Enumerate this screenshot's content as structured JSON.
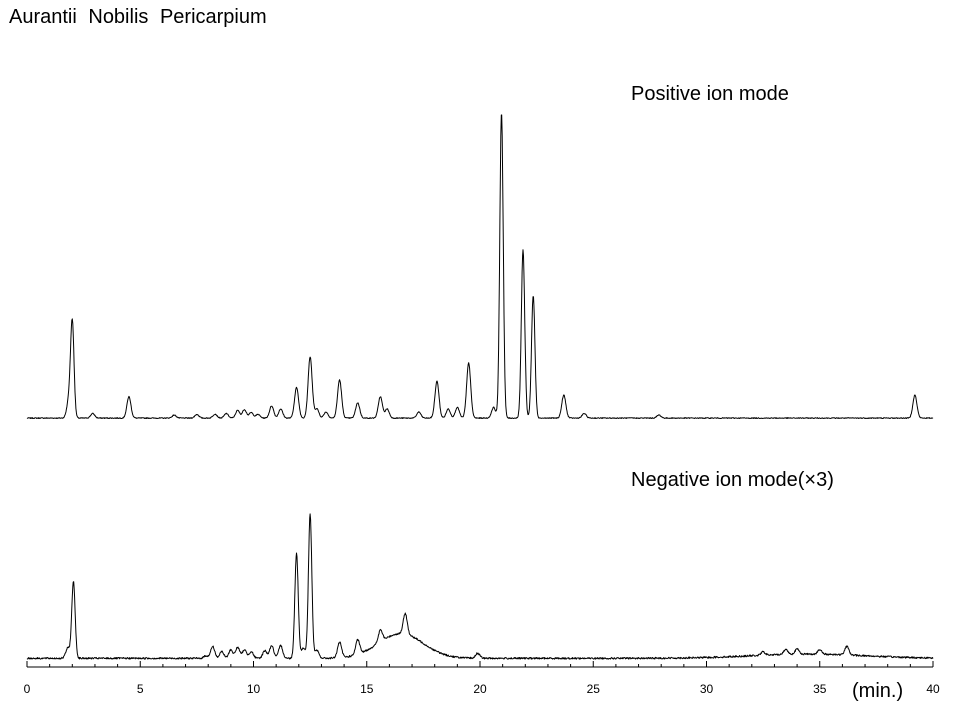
{
  "figure_title": "Aurantii  Nobilis  Pericarpium",
  "chart_data": {
    "type": "line",
    "title": "Aurantii  Nobilis  Pericarpium",
    "xlabel": "(min.)",
    "xlim": [
      0,
      40
    ],
    "x_ticks": [
      0,
      5,
      10,
      15,
      20,
      25,
      30,
      35,
      40
    ],
    "y_ticks_shown": false,
    "grid": false,
    "series": [
      {
        "name": "Positive ion mode",
        "baseline": 0.3,
        "noise": 0.15,
        "peaks": [
          [
            2.0,
            31
          ],
          [
            1.85,
            6
          ],
          [
            2.9,
            1.5
          ],
          [
            4.5,
            7
          ],
          [
            6.5,
            1
          ],
          [
            7.5,
            1.2
          ],
          [
            8.3,
            1.3
          ],
          [
            8.8,
            1.5
          ],
          [
            9.3,
            2.5
          ],
          [
            9.6,
            2.8
          ],
          [
            9.9,
            1.8
          ],
          [
            10.2,
            1.2
          ],
          [
            10.8,
            4
          ],
          [
            11.2,
            3
          ],
          [
            11.9,
            10
          ],
          [
            12.5,
            20
          ],
          [
            12.8,
            3
          ],
          [
            13.2,
            2
          ],
          [
            13.8,
            12.5
          ],
          [
            14.6,
            5
          ],
          [
            15.6,
            7
          ],
          [
            15.9,
            3
          ],
          [
            17.3,
            2
          ],
          [
            18.1,
            12
          ],
          [
            18.6,
            3
          ],
          [
            19.0,
            3.5
          ],
          [
            19.5,
            18
          ],
          [
            20.6,
            3.5
          ],
          [
            20.95,
            100
          ],
          [
            21.9,
            55
          ],
          [
            22.35,
            40
          ],
          [
            23.7,
            7.5
          ],
          [
            24.6,
            1.5
          ],
          [
            27.9,
            1
          ],
          [
            39.2,
            7.5
          ]
        ]
      },
      {
        "name": "Negative ion mode(×3)",
        "baseline": 1,
        "noise": 0.5,
        "peaks": [
          [
            1.8,
            6
          ],
          [
            2.05,
            45
          ],
          [
            7.9,
            1.5
          ],
          [
            8.2,
            7
          ],
          [
            8.6,
            4
          ],
          [
            9.0,
            5
          ],
          [
            9.3,
            6.5
          ],
          [
            9.6,
            5
          ],
          [
            9.9,
            4
          ],
          [
            10.5,
            4.5
          ],
          [
            10.8,
            7.5
          ],
          [
            11.2,
            7.5
          ],
          [
            11.9,
            62
          ],
          [
            12.2,
            6
          ],
          [
            12.5,
            85
          ],
          [
            12.8,
            4.5
          ],
          [
            13.8,
            9
          ],
          [
            14.6,
            8.5
          ],
          [
            15.6,
            7
          ],
          [
            16.7,
            12
          ],
          [
            19.9,
            3
          ],
          [
            32.5,
            2
          ],
          [
            33.5,
            3
          ],
          [
            34.0,
            3
          ],
          [
            35.0,
            2.5
          ],
          [
            36.2,
            5
          ]
        ],
        "humps": [
          [
            16.5,
            1.0,
            14.5
          ],
          [
            34.5,
            2.5,
            2.5
          ]
        ]
      }
    ]
  }
}
